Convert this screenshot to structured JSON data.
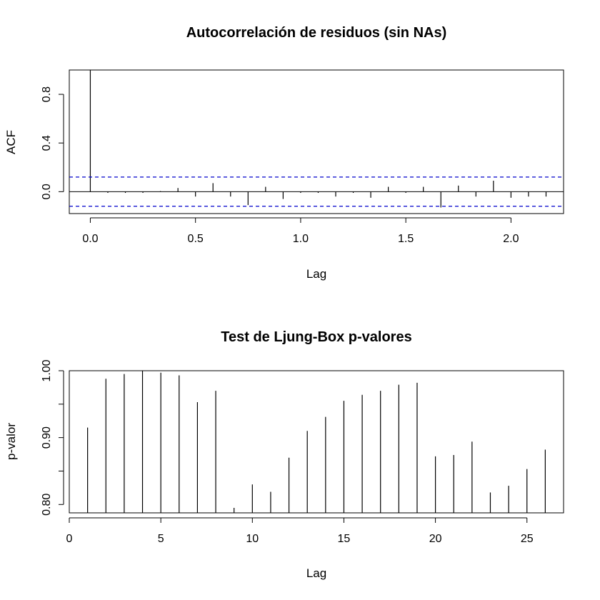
{
  "chart_data": [
    {
      "type": "bar",
      "title": "Autocorrelación de residuos (sin NAs)",
      "xlabel": "Lag",
      "ylabel": "ACF",
      "xlim": [
        -0.1,
        2.25
      ],
      "ylim": [
        -0.18,
        1.0
      ],
      "xticks": [
        0.0,
        0.5,
        1.0,
        1.5,
        2.0
      ],
      "xtick_labels": [
        "0.0",
        "0.5",
        "1.0",
        "1.5",
        "2.0"
      ],
      "yticks": [
        0.0,
        0.4,
        0.8
      ],
      "ytick_labels": [
        "0.0",
        "0.4",
        "0.8"
      ],
      "ci_bound": 0.12,
      "ci_color": "#0000cc",
      "x": [
        0.0,
        0.0833,
        0.1667,
        0.25,
        0.3333,
        0.4167,
        0.5,
        0.5833,
        0.6667,
        0.75,
        0.8333,
        0.9167,
        1.0,
        1.0833,
        1.1667,
        1.25,
        1.3333,
        1.4167,
        1.5,
        1.5833,
        1.6667,
        1.75,
        1.8333,
        1.9167,
        2.0,
        2.0833,
        2.1667
      ],
      "values": [
        1.0,
        -0.01,
        -0.01,
        -0.01,
        0.005,
        0.03,
        -0.04,
        0.07,
        -0.04,
        -0.11,
        0.04,
        -0.06,
        -0.01,
        -0.01,
        -0.04,
        -0.01,
        -0.05,
        0.04,
        -0.01,
        0.04,
        -0.13,
        0.05,
        -0.04,
        0.09,
        -0.05,
        -0.04,
        -0.04
      ]
    },
    {
      "type": "bar",
      "title": "Test de Ljung-Box p-valores",
      "xlabel": "Lag",
      "ylabel": "p-valor",
      "xlim": [
        0,
        27
      ],
      "ylim": [
        0.7875,
        1.0
      ],
      "xticks": [
        0,
        5,
        10,
        15,
        20,
        25
      ],
      "xtick_labels": [
        "0",
        "5",
        "10",
        "15",
        "20",
        "25"
      ],
      "yticks": [
        0.8,
        0.85,
        0.9,
        0.95,
        1.0
      ],
      "ytick_labels": [
        "0.80",
        "",
        "0.90",
        "",
        "1.00"
      ],
      "x": [
        1,
        2,
        3,
        4,
        5,
        6,
        7,
        8,
        9,
        10,
        11,
        12,
        13,
        14,
        15,
        16,
        17,
        18,
        19,
        20,
        21,
        22,
        23,
        24,
        25,
        26
      ],
      "values": [
        0.915,
        0.988,
        0.995,
        0.9995,
        0.997,
        0.993,
        0.953,
        0.97,
        0.795,
        0.83,
        0.819,
        0.87,
        0.91,
        0.931,
        0.955,
        0.964,
        0.97,
        0.979,
        0.982,
        0.872,
        0.874,
        0.894,
        0.818,
        0.828,
        0.853,
        0.882
      ]
    }
  ]
}
